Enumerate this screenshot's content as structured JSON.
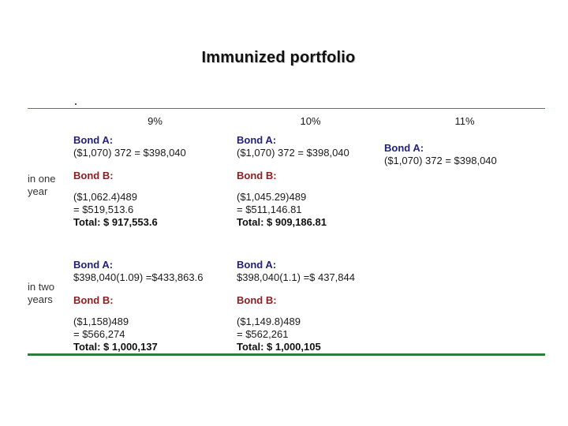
{
  "slide": {
    "title": "Immunized portfolio"
  },
  "table": {
    "headers": [
      "9%",
      "10%",
      "11%"
    ],
    "row_labels": [
      "in one year",
      "in two years"
    ],
    "rows": {
      "one_year": {
        "c9": {
          "bond_a_label": "Bond A:",
          "bond_a_value": "($1,070) 372 = $398,040",
          "bond_b_label": "Bond B:",
          "bond_b_line1": "($1,062.4)489",
          "bond_b_line2": "= $519,513.6",
          "total": "Total: $ 917,553.6"
        },
        "c10": {
          "bond_a_label": "Bond A:",
          "bond_a_value": "($1,070) 372 = $398,040",
          "bond_b_label": "Bond B:",
          "bond_b_line1": "($1,045.29)489",
          "bond_b_line2": "= $511,146.81",
          "total": "Total: $ 909,186.81"
        },
        "c11": {
          "bond_a_label": "Bond A:",
          "bond_a_value": "($1,070) 372 = $398,040"
        }
      },
      "two_years": {
        "c9": {
          "bond_a_label": "Bond A:",
          "bond_a_value": "$398,040(1.09) =$433,863.6",
          "bond_b_label": "Bond B:",
          "bond_b_line1": "($1,158)489",
          "bond_b_line2": "= $566,274",
          "total": "Total: $ 1,000,137"
        },
        "c10": {
          "bond_a_label": "Bond A:",
          "bond_a_value": "$398,040(1.1) =$ 437,844",
          "bond_b_label": "Bond B:",
          "bond_b_line1": "($1,149.8)489",
          "bond_b_line2": "= $562,261",
          "total": "Total: $ 1,000,105"
        }
      }
    }
  },
  "colors": {
    "bond_a_heading": "#21217b",
    "bond_b_heading": "#8b2020",
    "rule_green_top": "#3d8c49",
    "rule_green_bottom": "#2f7d3a",
    "body_text": "#1a1a1a"
  }
}
